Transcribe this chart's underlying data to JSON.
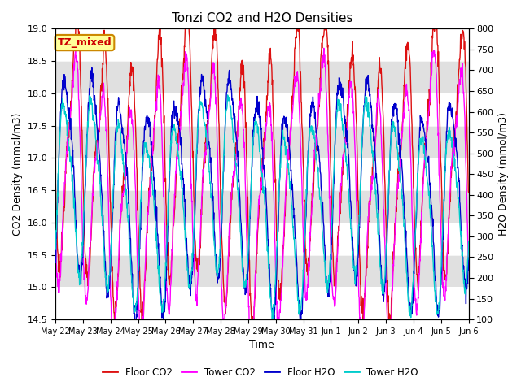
{
  "title": "Tonzi CO2 and H2O Densities",
  "xlabel": "Time",
  "ylabel_left": "CO2 Density (mmol/m3)",
  "ylabel_right": "H2O Density (mmol/m3)",
  "annotation_text": "TZ_mixed",
  "annotation_bg": "#ffff99",
  "annotation_border": "#cc8800",
  "annotation_text_color": "#cc0000",
  "x_tick_labels": [
    "May 22",
    "May 23",
    "May 24",
    "May 25",
    "May 26",
    "May 27",
    "May 28",
    "May 29",
    "May 30",
    "May 31",
    "Jun 1",
    "Jun 2",
    "Jun 3",
    "Jun 4",
    "Jun 5",
    "Jun 6"
  ],
  "ylim_left": [
    14.5,
    19.0
  ],
  "ylim_right": [
    100,
    800
  ],
  "yticks_left": [
    14.5,
    15.0,
    15.5,
    16.0,
    16.5,
    17.0,
    17.5,
    18.0,
    18.5,
    19.0
  ],
  "yticks_right": [
    100,
    150,
    200,
    250,
    300,
    350,
    400,
    450,
    500,
    550,
    600,
    650,
    700,
    750,
    800
  ],
  "colors": {
    "floor_co2": "#dd1111",
    "tower_co2": "#ff00ff",
    "floor_h2o": "#0000cc",
    "tower_h2o": "#00cccc"
  },
  "linewidth": 1.0,
  "n_points": 1440,
  "legend_labels": [
    "Floor CO2",
    "Tower CO2",
    "Floor H2O",
    "Tower H2O"
  ],
  "band_colors": [
    "#e8e8e8",
    "#f8f8f8"
  ],
  "band_yticks": [
    14.5,
    15.0,
    15.5,
    16.0,
    16.5,
    17.0,
    17.5,
    18.0,
    18.5,
    19.0
  ]
}
